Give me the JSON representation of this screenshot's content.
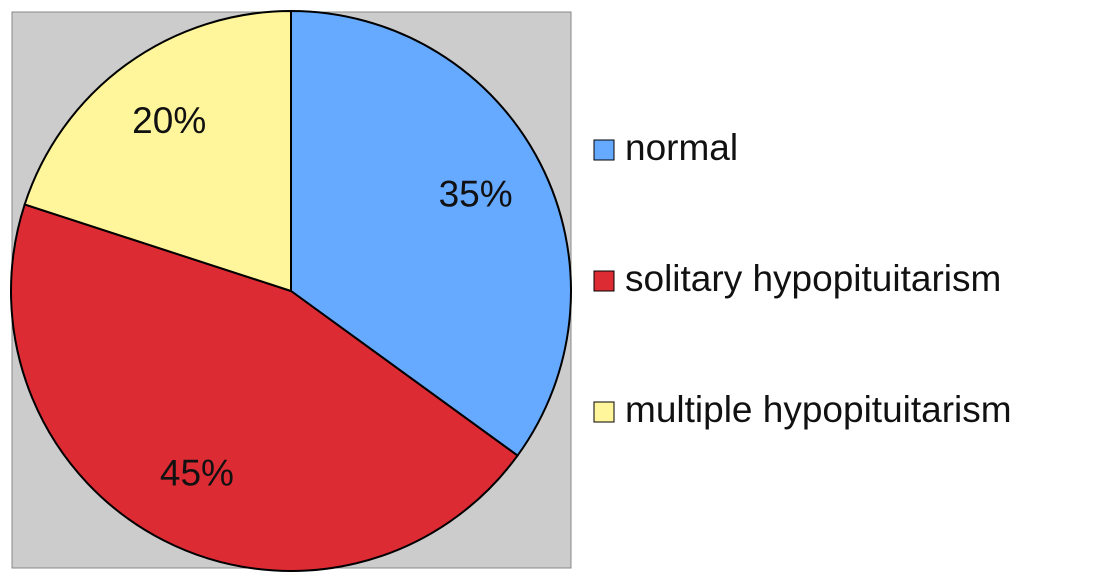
{
  "chart_data": {
    "type": "pie",
    "categories": [
      "normal",
      "solitary hypopituitarism",
      "multiple hypopituitarism"
    ],
    "values": [
      35,
      45,
      20
    ],
    "value_labels": [
      "35%",
      "45%",
      "20%"
    ],
    "colors": [
      "#66aaff",
      "#dd2b33",
      "#fff59a"
    ]
  }
}
